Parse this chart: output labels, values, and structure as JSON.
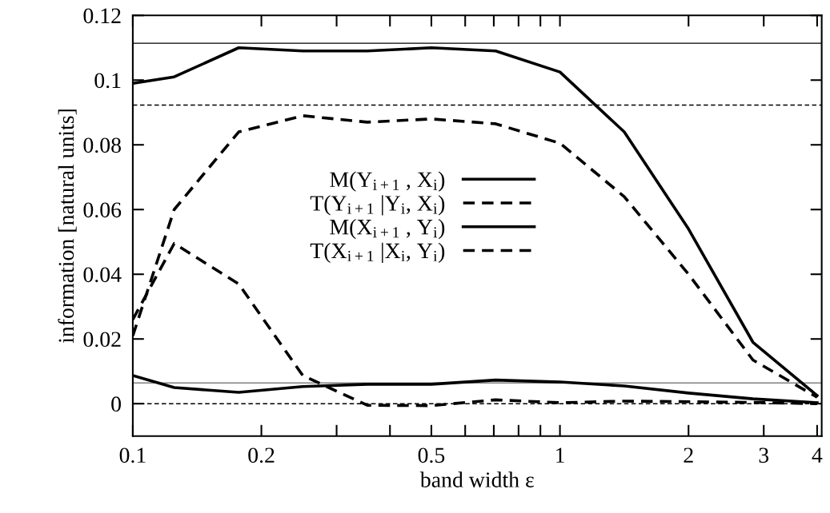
{
  "chart_data": {
    "type": "line",
    "xlabel": "band width ε",
    "ylabel": "information [natural units]",
    "log": "x",
    "grid": false,
    "legend": "center",
    "marker": "none",
    "x": [
      0.1,
      0.125,
      0.177,
      0.25,
      0.354,
      0.5,
      0.707,
      1,
      1.414,
      2,
      2.83,
      4
    ],
    "series": [
      {
        "name": "M(Y$_{i+1}$ , X$_{i}$)",
        "color": "#000000",
        "line_style": "solid",
        "values": [
          0.099,
          0.101,
          0.11,
          0.109,
          0.109,
          0.11,
          0.109,
          0.1025,
          0.084,
          0.054,
          0.019,
          0.0025
        ]
      },
      {
        "name": "T(Y$_{i+1}$ |Y$_{i}$, X$_{i}$)",
        "color": "#000000",
        "line_style": "dashed",
        "values": [
          0.021,
          0.06,
          0.084,
          0.089,
          0.087,
          0.088,
          0.0865,
          0.0805,
          0.064,
          0.04,
          0.0135,
          0.002
        ]
      },
      {
        "name": "M(X$_{i+1}$ , Y$_{i}$)",
        "color": "#000000",
        "line_style": "solid",
        "values": [
          0.0087,
          0.005,
          0.0035,
          0.0053,
          0.006,
          0.006,
          0.0073,
          0.0067,
          0.0055,
          0.0033,
          0.0015,
          0.0003
        ]
      },
      {
        "name": "T(X$_{i+1}$ |X$_{i}$, Y$_{i}$)",
        "color": "#000000",
        "line_style": "dashed",
        "values": [
          0.026,
          0.0495,
          0.037,
          0.0087,
          -0.0005,
          -0.0006,
          0.0012,
          0.0003,
          0.0008,
          0.0006,
          0.0004,
          0.0
        ]
      }
    ],
    "ref_lines": [
      {
        "axis": "y",
        "value": 0.1114,
        "color": "#000000",
        "line_style": "solid"
      },
      {
        "axis": "y",
        "value": 0.0923,
        "color": "#000000",
        "line_style": "dashed"
      },
      {
        "axis": "y",
        "value": 0.0064,
        "color": "#808080",
        "line_style": "solid"
      },
      {
        "axis": "y",
        "value": 0,
        "color": "#000000",
        "line_style": "dashed"
      }
    ],
    "xlim": [
      0.1,
      4.1
    ],
    "xticks": [
      0.1,
      0.2,
      {
        "value": 0.3,
        "label": null
      },
      {
        "value": 0.4,
        "label": null
      },
      0.5,
      {
        "value": 0.6,
        "label": null
      },
      {
        "value": 0.7,
        "label": null
      },
      {
        "value": 0.8,
        "label": null
      },
      {
        "value": 0.9,
        "label": null
      },
      1,
      2,
      3,
      4
    ],
    "ylim": [
      -0.01,
      0.12
    ],
    "yticks": [
      0,
      0.02,
      0.04,
      0.06,
      0.08,
      0.1,
      0.12
    ]
  }
}
